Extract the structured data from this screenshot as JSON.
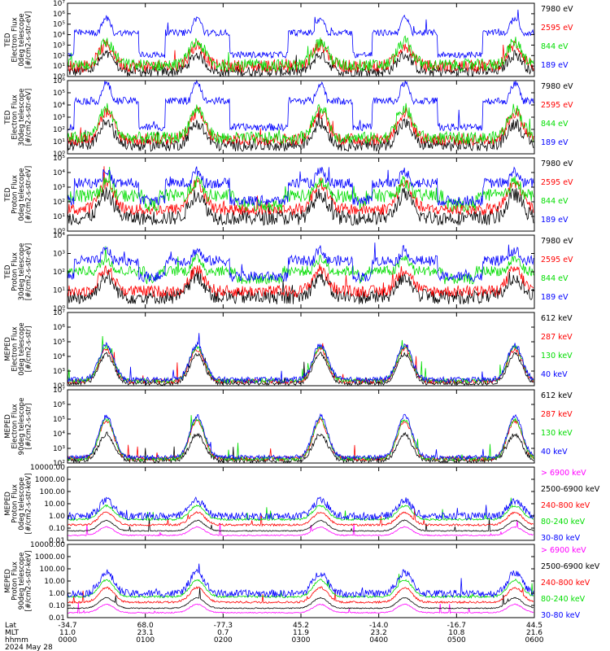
{
  "chart_data": [
    {
      "type": "line",
      "ylabel_lines": [
        "TED",
        "Electron Flux",
        "0deg telescope",
        "[#/cm2-s-str-eV]"
      ],
      "y_scale": "log",
      "ylim": [
        1,
        10000000
      ],
      "yticks": [
        "10⁰",
        "10¹",
        "10²",
        "10³",
        "10⁴",
        "10⁵",
        "10⁶",
        "10⁷"
      ],
      "series": [
        {
          "name": "7980 eV",
          "color": "#000000",
          "shape": "lo",
          "base": 3,
          "peak": 1.6,
          "noise": 1.0
        },
        {
          "name": "2595 eV",
          "color": "#ff0000",
          "shape": "lo",
          "base": 10,
          "peak": 2.0,
          "noise": 1.2
        },
        {
          "name": "844 eV",
          "color": "#00dd00",
          "shape": "lo",
          "base": 12,
          "peak": 2.2,
          "noise": 1.2
        },
        {
          "name": "189 eV",
          "color": "#0000ff",
          "shape": "hi",
          "base": 120,
          "peak": 3.5,
          "noise": 0.6
        }
      ]
    },
    {
      "type": "line",
      "ylabel_lines": [
        "TED",
        "Electron Flux",
        "30deg telescope",
        "[#/cm2-s-str-eV]"
      ],
      "y_scale": "log",
      "ylim": [
        1,
        1000000
      ],
      "yticks": [
        "10⁰",
        "10¹",
        "10²",
        "10³",
        "10⁴",
        "10⁵",
        "10⁶"
      ],
      "series": [
        {
          "name": "7980 eV",
          "color": "#000000",
          "shape": "lo",
          "base": 5,
          "peak": 1.8,
          "noise": 1.0
        },
        {
          "name": "2595 eV",
          "color": "#ff0000",
          "shape": "lo",
          "base": 15,
          "peak": 2.2,
          "noise": 1.0
        },
        {
          "name": "844 eV",
          "color": "#00dd00",
          "shape": "lo",
          "base": 20,
          "peak": 2.4,
          "noise": 1.0
        },
        {
          "name": "189 eV",
          "color": "#0000ff",
          "shape": "hi",
          "base": 150,
          "peak": 3.6,
          "noise": 0.6
        }
      ]
    },
    {
      "type": "line",
      "ylabel_lines": [
        "TED",
        "Proton Flux",
        "0deg telescope",
        "[#/cm2-s-str-eV]"
      ],
      "y_scale": "log",
      "ylim": [
        1,
        100000
      ],
      "yticks": [
        "10⁰",
        "10¹",
        "10²",
        "10³",
        "10⁴",
        "10⁵"
      ],
      "series": [
        {
          "name": "7980 eV",
          "color": "#000000",
          "shape": "lo",
          "base": 8,
          "peak": 1.6,
          "noise": 1.0
        },
        {
          "name": "2595 eV",
          "color": "#ff0000",
          "shape": "lo",
          "base": 30,
          "peak": 1.8,
          "noise": 0.8
        },
        {
          "name": "844 eV",
          "color": "#00dd00",
          "shape": "flat",
          "base": 60,
          "peak": 1.6,
          "noise": 0.9
        },
        {
          "name": "189 eV",
          "color": "#0000ff",
          "shape": "hi",
          "base": 120,
          "peak": 2.0,
          "noise": 0.7
        }
      ]
    },
    {
      "type": "line",
      "ylabel_lines": [
        "TED",
        "Proton Flux",
        "30deg telescope",
        "[#/cm2-s-str-eV]"
      ],
      "y_scale": "log",
      "ylim": [
        1,
        100000
      ],
      "yticks": [
        "10⁰",
        "10¹",
        "10²",
        "10³",
        "10⁴"
      ],
      "series": [
        {
          "name": "7980 eV",
          "color": "#000000",
          "shape": "lo",
          "base": 6,
          "peak": 1.4,
          "noise": 1.0
        },
        {
          "name": "2595 eV",
          "color": "#ff0000",
          "shape": "lo",
          "base": 15,
          "peak": 1.5,
          "noise": 0.8
        },
        {
          "name": "844 eV",
          "color": "#00dd00",
          "shape": "flat",
          "base": 100,
          "peak": 1.4,
          "noise": 0.7
        },
        {
          "name": "189 eV",
          "color": "#0000ff",
          "shape": "hi",
          "base": 150,
          "peak": 1.8,
          "noise": 0.7
        }
      ]
    },
    {
      "type": "line",
      "ylabel_lines": [
        "MEPED",
        "Electron Flux",
        "0deg telescope",
        "[#/cm2-s-str]"
      ],
      "y_scale": "log",
      "ylim": [
        100,
        10000000
      ],
      "yticks": [
        "10²",
        "10³",
        "10⁴",
        "10⁵",
        "10⁶",
        "10⁷"
      ],
      "series": [
        {
          "name": "612 keV",
          "color": "#000000",
          "shape": "lo",
          "base": 150,
          "peak": 2.0,
          "noise": 0.3
        },
        {
          "name": "287 keV",
          "color": "#ff0000",
          "shape": "lo",
          "base": 200,
          "peak": 2.2,
          "noise": 0.3
        },
        {
          "name": "130 keV",
          "color": "#00dd00",
          "shape": "lo",
          "base": 220,
          "peak": 2.3,
          "noise": 0.3
        },
        {
          "name": "40 keV",
          "color": "#0000ff",
          "shape": "lo",
          "base": 250,
          "peak": 2.4,
          "noise": 0.4
        }
      ]
    },
    {
      "type": "line",
      "ylabel_lines": [
        "MEPED",
        "Electron Flux",
        "90deg telescope",
        "[#/cm2-s-str]"
      ],
      "y_scale": "log",
      "ylim": [
        100,
        10000000
      ],
      "yticks": [
        "10²",
        "10³",
        "10⁴",
        "10⁵",
        "10⁶",
        "10⁷"
      ],
      "series": [
        {
          "name": "612 keV",
          "color": "#000000",
          "shape": "lo",
          "base": 150,
          "peak": 1.8,
          "noise": 0.3
        },
        {
          "name": "287 keV",
          "color": "#ff0000",
          "shape": "lo",
          "base": 200,
          "peak": 2.6,
          "noise": 0.3
        },
        {
          "name": "130 keV",
          "color": "#00dd00",
          "shape": "lo",
          "base": 200,
          "peak": 2.7,
          "noise": 0.3
        },
        {
          "name": "40 keV",
          "color": "#0000ff",
          "shape": "lo",
          "base": 250,
          "peak": 2.8,
          "noise": 0.3
        }
      ]
    },
    {
      "type": "line",
      "ylabel_lines": [
        "MEPED",
        "Proton Flux",
        "0deg telescope",
        "[#/cm2-s-str-keV]"
      ],
      "y_scale": "log",
      "ylim": [
        0.01,
        100000
      ],
      "yticks": [
        "0.01",
        "0.10",
        "1.00",
        "10.00",
        "100.00",
        "1000.00",
        "10000.00"
      ],
      "series": [
        {
          "name": "> 6900 keV",
          "color": "#ff00ff",
          "shape": "lo",
          "base": 0.03,
          "peak": 0.8,
          "noise": 0.1
        },
        {
          "name": "2500-6900 keV",
          "color": "#000000",
          "shape": "lo",
          "base": 0.08,
          "peak": 1.0,
          "noise": 0.1
        },
        {
          "name": "240-800 keV",
          "color": "#ff0000",
          "shape": "lo",
          "base": 0.3,
          "peak": 1.2,
          "noise": 0.2
        },
        {
          "name": "80-240 keV",
          "color": "#00dd00",
          "shape": "lo",
          "base": 1.0,
          "peak": 1.3,
          "noise": 0.2
        },
        {
          "name": "30-80 keV",
          "color": "#0000ff",
          "shape": "lo",
          "base": 2.0,
          "peak": 1.5,
          "noise": 0.7
        }
      ]
    },
    {
      "type": "line",
      "ylabel_lines": [
        "MEPED",
        "Proton Flux",
        "90deg telescope",
        "[#/cm2-s-str-keV]"
      ],
      "y_scale": "log",
      "ylim": [
        0.01,
        100000
      ],
      "yticks": [
        "0.01",
        "0.10",
        "1.00",
        "10.00",
        "100.00",
        "1000.00",
        "10000.00"
      ],
      "series": [
        {
          "name": "> 6900 keV",
          "color": "#ff00ff",
          "shape": "lo",
          "base": 0.03,
          "peak": 0.8,
          "noise": 0.1
        },
        {
          "name": "2500-6900 keV",
          "color": "#000000",
          "shape": "lo",
          "base": 0.08,
          "peak": 1.0,
          "noise": 0.1
        },
        {
          "name": "240-800 keV",
          "color": "#ff0000",
          "shape": "lo",
          "base": 0.3,
          "peak": 1.4,
          "noise": 0.2
        },
        {
          "name": "80-240 keV",
          "color": "#00dd00",
          "shape": "lo",
          "base": 1.0,
          "peak": 1.6,
          "noise": 0.2
        },
        {
          "name": "30-80 keV",
          "color": "#0000ff",
          "shape": "lo",
          "base": 2.0,
          "peak": 2.0,
          "noise": 0.7
        }
      ]
    }
  ],
  "x_axis": {
    "row_labels": [
      "Lat",
      "MLT",
      "hhmm"
    ],
    "ticks": [
      {
        "lat": "-34.7",
        "mlt": "11.0",
        "hhmm": "0000"
      },
      {
        "lat": "68.0",
        "mlt": "23.1",
        "hhmm": "0100"
      },
      {
        "lat": "-77.3",
        "mlt": "0.7",
        "hhmm": "0200"
      },
      {
        "lat": "45.2",
        "mlt": "11.9",
        "hhmm": "0300"
      },
      {
        "lat": "-14.0",
        "mlt": "23.2",
        "hhmm": "0400"
      },
      {
        "lat": "-16.7",
        "mlt": "10.8",
        "hhmm": "0500"
      },
      {
        "lat": "44.5",
        "mlt": "21.6",
        "hhmm": "0600"
      }
    ],
    "date": "2024 May 28",
    "pass_centers_hhmm": [
      "0030",
      "0140",
      "0315",
      "0420",
      "0545"
    ]
  }
}
